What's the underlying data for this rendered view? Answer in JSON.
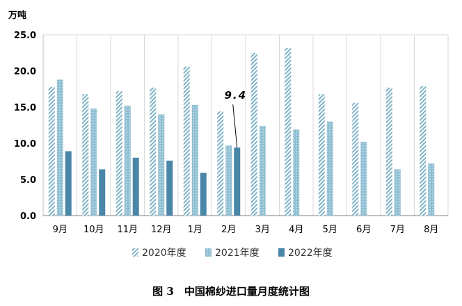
{
  "chart_data": {
    "type": "bar",
    "unit_label": "万吨",
    "categories": [
      "9月",
      "10月",
      "11月",
      "12月",
      "1月",
      "2月",
      "3月",
      "4月",
      "5月",
      "6月",
      "7月",
      "8月"
    ],
    "series": [
      {
        "name": "2020年度",
        "pattern": "diagonal",
        "color": "#7fb3c6",
        "values": [
          17.8,
          16.8,
          17.2,
          17.7,
          20.6,
          14.4,
          22.5,
          23.2,
          16.8,
          15.6,
          17.7,
          17.9
        ]
      },
      {
        "name": "2021年度",
        "pattern": "dotted",
        "color": "#8fbfd3",
        "values": [
          18.8,
          14.8,
          15.2,
          14.0,
          15.3,
          9.7,
          12.4,
          11.9,
          13.0,
          10.2,
          6.4,
          7.2
        ]
      },
      {
        "name": "2022年度",
        "pattern": "solid",
        "color": "#4a86a8",
        "values": [
          8.9,
          6.4,
          8.0,
          7.6,
          5.9,
          9.4,
          null,
          null,
          null,
          null,
          null,
          null
        ]
      }
    ],
    "ylim": [
      0,
      25
    ],
    "yticks": [
      "0.0",
      "5.0",
      "10.0",
      "15.0",
      "20.0",
      "25.0"
    ],
    "annotation": {
      "text": "9.4",
      "category": "2月",
      "series": "2022年度"
    },
    "legend_position": "bottom",
    "grid": "vertical",
    "caption": "图 3　中国棉纱进口量月度统计图"
  }
}
